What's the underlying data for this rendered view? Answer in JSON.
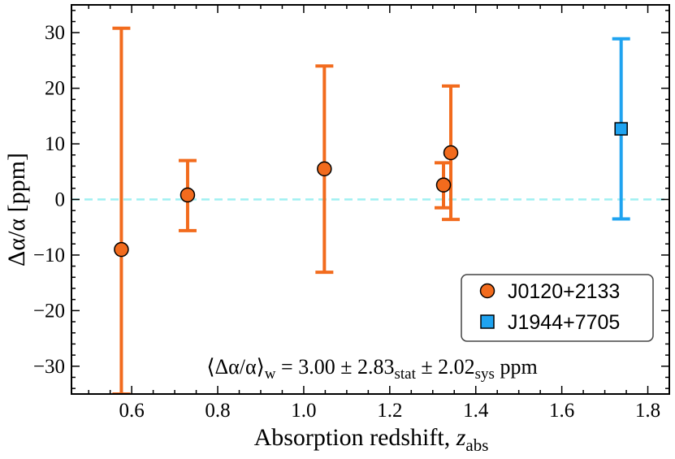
{
  "chart_data": {
    "type": "scatter",
    "xlabel_text": "Absorption redshift, ",
    "xlabel_var": "z",
    "xlabel_sub": "abs",
    "ylabel": "Δα/α [ppm]",
    "xlim": [
      0.46,
      1.85
    ],
    "ylim": [
      -35,
      35
    ],
    "xticks": [
      0.6,
      0.8,
      1.0,
      1.2,
      1.4,
      1.6,
      1.8
    ],
    "xtick_labels": [
      "0.6",
      "0.8",
      "1.0",
      "1.2",
      "1.4",
      "1.6",
      "1.8"
    ],
    "yticks": [
      -30,
      -20,
      -10,
      0,
      10,
      20,
      30
    ],
    "ytick_labels": [
      "−30",
      "−20",
      "−10",
      "0",
      "10",
      "20",
      "30"
    ],
    "reference_line": 0,
    "series": [
      {
        "name": "J0120+2133",
        "marker": "circle",
        "color": "#f26b1d",
        "points": [
          {
            "x": 0.576,
            "y": -9.0,
            "lo": -35.0,
            "hi": 30.8
          },
          {
            "x": 0.73,
            "y": 0.8,
            "lo": -5.6,
            "hi": 7.0
          },
          {
            "x": 1.048,
            "y": 5.5,
            "lo": -13.1,
            "hi": 24.0
          },
          {
            "x": 1.325,
            "y": 2.6,
            "lo": -1.5,
            "hi": 6.6
          },
          {
            "x": 1.342,
            "y": 8.4,
            "lo": -3.6,
            "hi": 20.4
          }
        ]
      },
      {
        "name": "J1944+7705",
        "marker": "square",
        "color": "#1fa3f0",
        "points": [
          {
            "x": 1.738,
            "y": 12.7,
            "lo": -3.5,
            "hi": 28.9
          }
        ]
      }
    ],
    "legend": {
      "position": "lower-right",
      "entries": [
        "J0120+2133",
        "J1944+7705"
      ]
    },
    "annotation": {
      "open": "⟨Δα/α⟩",
      "open_sub": "w",
      "value": " = 3.00 ± 2.83",
      "stat_sub": "stat",
      "sys_part": " ± 2.02",
      "sys_sub": "sys",
      "unit": " ppm"
    }
  },
  "colors": {
    "orange": "#f26b1d",
    "blue": "#1fa3f0",
    "reference": "#9ff0f2",
    "marker_edge": "#000000"
  }
}
